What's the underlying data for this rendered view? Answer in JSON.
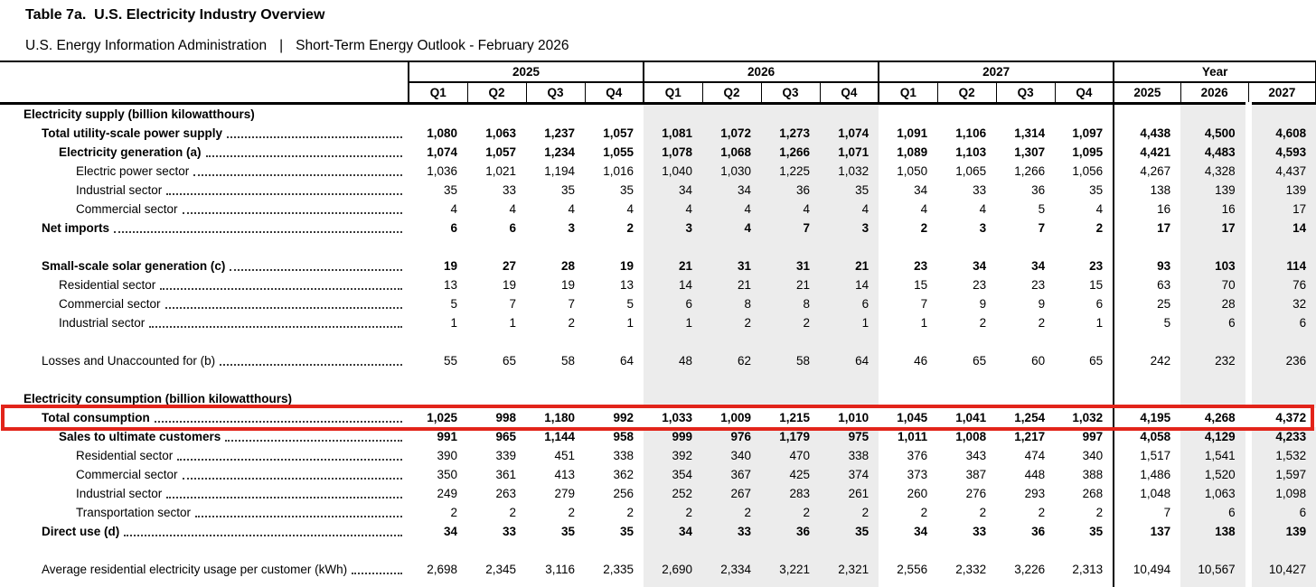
{
  "header": {
    "title": "Table 7a.  U.S. Electricity Industry Overview",
    "subtitle_left": "U.S. Energy Information Administration",
    "subtitle_sep": "|",
    "subtitle_right": "Short-Term Energy Outlook - February 2026"
  },
  "columns": {
    "year_groups": [
      {
        "label": "2025",
        "span": 4
      },
      {
        "label": "2026",
        "span": 4
      },
      {
        "label": "2027",
        "span": 4
      },
      {
        "label": "Year",
        "span": 3
      }
    ],
    "quarter_labels": [
      "Q1",
      "Q2",
      "Q3",
      "Q4",
      "Q1",
      "Q2",
      "Q3",
      "Q4",
      "Q1",
      "Q2",
      "Q3",
      "Q4"
    ],
    "annual_labels": [
      "2025",
      "2026",
      "2027"
    ]
  },
  "colors": {
    "forecast_shade": "#ececec",
    "highlight_red": "#e2241a"
  },
  "rows": [
    {
      "label": "Electricity supply (billion kilowatthours)",
      "indent": 0,
      "bold": true,
      "section": true
    },
    {
      "label": "Total utility-scale power supply",
      "indent": 1,
      "bold": true,
      "values": [
        "1,080",
        "1,063",
        "1,237",
        "1,057",
        "1,081",
        "1,072",
        "1,273",
        "1,074",
        "1,091",
        "1,106",
        "1,314",
        "1,097",
        "4,438",
        "4,500",
        "4,608"
      ]
    },
    {
      "label": "Electricity generation (a)",
      "indent": 2,
      "bold": true,
      "values": [
        "1,074",
        "1,057",
        "1,234",
        "1,055",
        "1,078",
        "1,068",
        "1,266",
        "1,071",
        "1,089",
        "1,103",
        "1,307",
        "1,095",
        "4,421",
        "4,483",
        "4,593"
      ]
    },
    {
      "label": "Electric power sector",
      "indent": 3,
      "values": [
        "1,036",
        "1,021",
        "1,194",
        "1,016",
        "1,040",
        "1,030",
        "1,225",
        "1,032",
        "1,050",
        "1,065",
        "1,266",
        "1,056",
        "4,267",
        "4,328",
        "4,437"
      ]
    },
    {
      "label": "Industrial sector",
      "indent": 3,
      "values": [
        "35",
        "33",
        "35",
        "35",
        "34",
        "34",
        "36",
        "35",
        "34",
        "33",
        "36",
        "35",
        "138",
        "139",
        "139"
      ]
    },
    {
      "label": "Commercial sector",
      "indent": 3,
      "values": [
        "4",
        "4",
        "4",
        "4",
        "4",
        "4",
        "4",
        "4",
        "4",
        "4",
        "5",
        "4",
        "16",
        "16",
        "17"
      ]
    },
    {
      "label": "Net imports",
      "indent": 1,
      "bold": true,
      "values": [
        "6",
        "6",
        "3",
        "2",
        "3",
        "4",
        "7",
        "3",
        "2",
        "3",
        "7",
        "2",
        "17",
        "17",
        "14"
      ]
    },
    {
      "blank": true
    },
    {
      "label": "Small-scale solar generation (c)",
      "indent": 1,
      "bold": true,
      "values": [
        "19",
        "27",
        "28",
        "19",
        "21",
        "31",
        "31",
        "21",
        "23",
        "34",
        "34",
        "23",
        "93",
        "103",
        "114"
      ]
    },
    {
      "label": "Residential sector",
      "indent": 2,
      "values": [
        "13",
        "19",
        "19",
        "13",
        "14",
        "21",
        "21",
        "14",
        "15",
        "23",
        "23",
        "15",
        "63",
        "70",
        "76"
      ]
    },
    {
      "label": "Commercial sector",
      "indent": 2,
      "values": [
        "5",
        "7",
        "7",
        "5",
        "6",
        "8",
        "8",
        "6",
        "7",
        "9",
        "9",
        "6",
        "25",
        "28",
        "32"
      ]
    },
    {
      "label": "Industrial sector",
      "indent": 2,
      "values": [
        "1",
        "1",
        "2",
        "1",
        "1",
        "2",
        "2",
        "1",
        "1",
        "2",
        "2",
        "1",
        "5",
        "6",
        "6"
      ]
    },
    {
      "blank": true
    },
    {
      "label": "Losses and Unaccounted for (b)",
      "indent": 1,
      "values": [
        "55",
        "65",
        "58",
        "64",
        "48",
        "62",
        "58",
        "64",
        "46",
        "65",
        "60",
        "65",
        "242",
        "232",
        "236"
      ]
    },
    {
      "blank": true
    },
    {
      "label": "Electricity consumption (billion kilowatthours)",
      "indent": 0,
      "bold": true,
      "section": true
    },
    {
      "label": "Total consumption",
      "indent": 1,
      "bold": true,
      "highlight": true,
      "values": [
        "1,025",
        "998",
        "1,180",
        "992",
        "1,033",
        "1,009",
        "1,215",
        "1,010",
        "1,045",
        "1,041",
        "1,254",
        "1,032",
        "4,195",
        "4,268",
        "4,372"
      ]
    },
    {
      "label": "Sales to ultimate customers",
      "indent": 2,
      "bold": true,
      "values": [
        "991",
        "965",
        "1,144",
        "958",
        "999",
        "976",
        "1,179",
        "975",
        "1,011",
        "1,008",
        "1,217",
        "997",
        "4,058",
        "4,129",
        "4,233"
      ]
    },
    {
      "label": "Residential sector",
      "indent": 3,
      "values": [
        "390",
        "339",
        "451",
        "338",
        "392",
        "340",
        "470",
        "338",
        "376",
        "343",
        "474",
        "340",
        "1,517",
        "1,541",
        "1,532"
      ]
    },
    {
      "label": "Commercial sector",
      "indent": 3,
      "values": [
        "350",
        "361",
        "413",
        "362",
        "354",
        "367",
        "425",
        "374",
        "373",
        "387",
        "448",
        "388",
        "1,486",
        "1,520",
        "1,597"
      ]
    },
    {
      "label": "Industrial sector",
      "indent": 3,
      "values": [
        "249",
        "263",
        "279",
        "256",
        "252",
        "267",
        "283",
        "261",
        "260",
        "276",
        "293",
        "268",
        "1,048",
        "1,063",
        "1,098"
      ]
    },
    {
      "label": "Transportation sector",
      "indent": 3,
      "values": [
        "2",
        "2",
        "2",
        "2",
        "2",
        "2",
        "2",
        "2",
        "2",
        "2",
        "2",
        "2",
        "7",
        "6",
        "6"
      ]
    },
    {
      "label": "Direct use (d)",
      "indent": 1,
      "bold": true,
      "values": [
        "34",
        "33",
        "35",
        "35",
        "34",
        "33",
        "36",
        "35",
        "34",
        "33",
        "36",
        "35",
        "137",
        "138",
        "139"
      ]
    },
    {
      "blank": true
    },
    {
      "label": "Average residential electricity usage per customer (kWh)",
      "indent": 1,
      "values": [
        "2,698",
        "2,345",
        "3,116",
        "2,335",
        "2,690",
        "2,334",
        "3,221",
        "2,321",
        "2,556",
        "2,332",
        "3,226",
        "2,313",
        "10,494",
        "10,567",
        "10,427"
      ]
    }
  ]
}
